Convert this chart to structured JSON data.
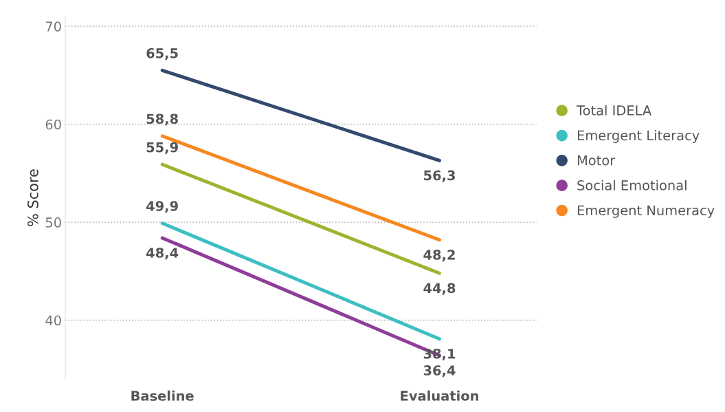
{
  "chart_data": {
    "type": "line",
    "ylabel": "% Score",
    "categories": [
      "Baseline",
      "Evaluation"
    ],
    "series": [
      {
        "name": "Total IDELA",
        "color": "#9fb32f",
        "values": [
          55.9,
          44.8
        ],
        "value_labels": [
          "55,9",
          "44,8"
        ]
      },
      {
        "name": "Emergent Literacy",
        "color": "#3cbfc2",
        "values": [
          49.9,
          38.1
        ],
        "value_labels": [
          "49,9",
          "38,1"
        ]
      },
      {
        "name": "Motor",
        "color": "#34496e",
        "values": [
          65.5,
          56.3
        ],
        "value_labels": [
          "65,5",
          "56,3"
        ]
      },
      {
        "name": "Social Emotional",
        "color": "#8e3e98",
        "values": [
          48.4,
          36.4
        ],
        "value_labels": [
          "48,4",
          "36,4"
        ]
      },
      {
        "name": "Emergent Numeracy",
        "color": "#f7881f",
        "values": [
          58.8,
          48.2
        ],
        "value_labels": [
          "58,8",
          "48,2"
        ]
      }
    ],
    "ylim": [
      34,
      71
    ],
    "yticks": [
      40,
      50,
      60,
      70
    ],
    "grid": "y",
    "legend": "right",
    "marker": "none",
    "line_style": "solid"
  }
}
